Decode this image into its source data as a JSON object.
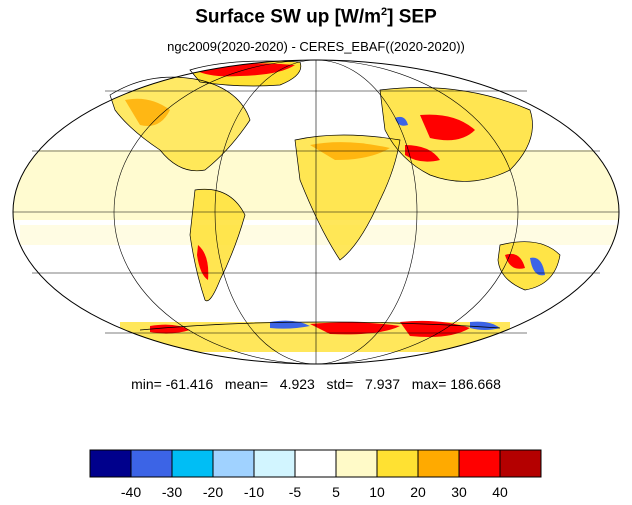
{
  "title": {
    "main": "Surface SW up [W/m",
    "sup": "2",
    "tail": "]  SEP"
  },
  "subtitle": "ngc2009(2020-2020) - CERES_EBAF((2020-2020))",
  "stats": {
    "min_label": "min=",
    "min": "-61.416",
    "mean_label": "mean=",
    "mean": "4.923",
    "std_label": "std=",
    "std": "7.937",
    "max_label": "max=",
    "max": "186.668"
  },
  "colorbar": {
    "colors": [
      "#00008c",
      "#3c64e6",
      "#00bef5",
      "#a0d2ff",
      "#d2f5ff",
      "#ffffff",
      "#fffac8",
      "#ffe132",
      "#ffaa00",
      "#ff0000",
      "#b40000"
    ],
    "tick_labels": [
      "-40",
      "-30",
      "-20",
      "-10",
      "-5",
      "5",
      "10",
      "20",
      "30",
      "40"
    ]
  }
}
